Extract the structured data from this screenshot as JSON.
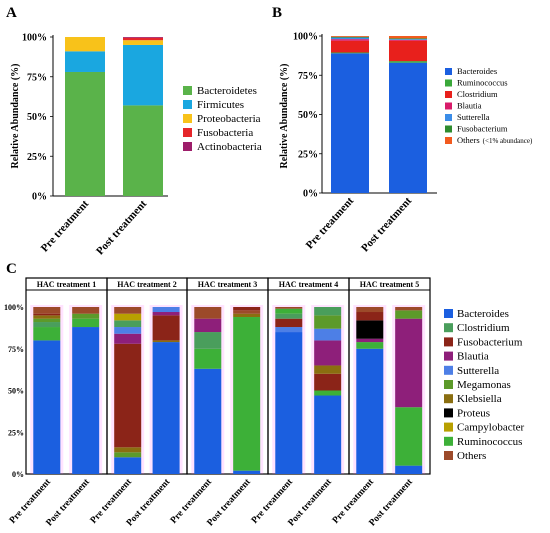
{
  "panel_labels": {
    "a": "A",
    "b": "B",
    "c": "C"
  },
  "colors": {
    "Bacteroidetes": "#5ab34a",
    "Firmicutes": "#1aa7e0",
    "Proteobacteria": "#f8c21a",
    "Fusobacteria": "#e5262a",
    "Actinobacteria": "#9d1d6a",
    "Bacteroides": "#1b5fe0",
    "Ruminococcus": "#3aa83a",
    "Clostridium": "#e8201c",
    "Blautia": "#d81b6a",
    "Sutterella": "#3b8de8",
    "Fusobacterium": "#2e8b2e",
    "Others": "#f25a1e",
    "C_Clostridium": "#4a9e5c",
    "C_Fusobacterium": "#8b2418",
    "C_Blautia": "#8e1f7a",
    "C_Sutterella": "#4d7fe6",
    "C_Megamonas": "#5c9a2a",
    "C_Klebsiella": "#8a6e10",
    "C_Proteus": "#000000",
    "C_Campylobacter": "#b8a000",
    "C_Ruminococcus": "#3db038",
    "C_Others": "#9c4a2a",
    "glow": "#ff66ff"
  },
  "chart_data": [
    {
      "panel": "A",
      "type": "bar",
      "stacked": true,
      "ylabel": "Relative Abundance (%)",
      "yticks": [
        "0%",
        "25%",
        "50%",
        "75%",
        "100%"
      ],
      "ylim": [
        0,
        100
      ],
      "categories": [
        "Pre treatment",
        "Post treatment"
      ],
      "series": [
        {
          "name": "Bacteroidetes",
          "values": [
            78,
            57
          ]
        },
        {
          "name": "Firmicutes",
          "values": [
            13,
            38
          ]
        },
        {
          "name": "Proteobacteria",
          "values": [
            9,
            3
          ]
        },
        {
          "name": "Fusobacteria",
          "values": [
            0,
            1.5
          ]
        },
        {
          "name": "Actinobacteria",
          "values": [
            0,
            0.5
          ]
        }
      ],
      "legend": "right"
    },
    {
      "panel": "B",
      "type": "bar",
      "stacked": true,
      "ylabel": "Relative Abundance (%)",
      "yticks": [
        "0%",
        "25%",
        "50%",
        "75%",
        "100%"
      ],
      "ylim": [
        0,
        100
      ],
      "categories": [
        "Pre treatment",
        "Post treatment"
      ],
      "series": [
        {
          "name": "Bacteroides",
          "values": [
            89,
            83
          ]
        },
        {
          "name": "Ruminococcus",
          "values": [
            0.5,
            1
          ]
        },
        {
          "name": "Clostridium",
          "values": [
            7.5,
            13
          ]
        },
        {
          "name": "Blautia",
          "values": [
            1,
            0.5
          ]
        },
        {
          "name": "Sutterella",
          "values": [
            1,
            0.5
          ]
        },
        {
          "name": "Fusobacterium",
          "values": [
            0.5,
            0.5
          ]
        },
        {
          "name": "Others",
          "values": [
            0.5,
            1.5
          ]
        }
      ],
      "legend_entries": [
        "Bacteroides",
        "Ruminococcus",
        "Clostridium",
        "Blautia",
        "Sutterella",
        "Fusobacterium",
        "Others"
      ],
      "legend_note": "(<1% abundance)",
      "legend": "right"
    },
    {
      "panel": "C",
      "type": "bar",
      "stacked": true,
      "ylim": [
        0,
        100
      ],
      "yticks": [
        "0%",
        "25%",
        "50%",
        "75%",
        "100%"
      ],
      "groups": [
        "HAC treatment 1",
        "HAC treatment 2",
        "HAC treatment 3",
        "HAC treatment 4",
        "HAC treatment 5"
      ],
      "categories": [
        "Pre treatment",
        "Post treatment"
      ],
      "legend_entries": [
        "Bacteroides",
        "Clostridium",
        "Fusobacterium",
        "Blautia",
        "Sutterella",
        "Megamonas",
        "Klebsiella",
        "Proteus",
        "Campylobacter",
        "Ruminococcus",
        "Others"
      ],
      "bars": [
        [
          [
            "Bacteroides",
            80
          ],
          [
            "Ruminococcus",
            8
          ],
          [
            "Clostridium",
            3
          ],
          [
            "Megamonas",
            2
          ],
          [
            "Klebsiella",
            2
          ],
          [
            "Fusobacterium",
            1
          ],
          [
            "Others",
            4
          ]
        ],
        [
          [
            "Bacteroides",
            88
          ],
          [
            "Ruminococcus",
            5
          ],
          [
            "Megamonas",
            3
          ],
          [
            "Others",
            4
          ]
        ],
        [
          [
            "Bacteroides",
            10
          ],
          [
            "Megamonas",
            3
          ],
          [
            "Klebsiella",
            3
          ],
          [
            "Fusobacterium",
            62
          ],
          [
            "Blautia",
            6
          ],
          [
            "Sutterella",
            4
          ],
          [
            "Clostridium",
            4
          ],
          [
            "Campylobacter",
            4
          ],
          [
            "Others",
            4
          ]
        ],
        [
          [
            "Bacteroides",
            79
          ],
          [
            "Klebsiella",
            1
          ],
          [
            "Fusobacterium",
            15
          ],
          [
            "Blautia",
            2
          ],
          [
            "Sutterella",
            3
          ]
        ],
        [
          [
            "Bacteroides",
            63
          ],
          [
            "Ruminococcus",
            12
          ],
          [
            "Clostridium",
            10
          ],
          [
            "Blautia",
            8
          ],
          [
            "Others",
            7
          ]
        ],
        [
          [
            "Bacteroides",
            2
          ],
          [
            "Ruminococcus",
            92
          ],
          [
            "Klebsiella",
            2
          ],
          [
            "Others",
            2
          ],
          [
            "Fusobacterium",
            2
          ]
        ],
        [
          [
            "Bacteroides",
            85
          ],
          [
            "Sutterella",
            3
          ],
          [
            "Fusobacterium",
            5
          ],
          [
            "Clostridium",
            3
          ],
          [
            "Ruminococcus",
            3
          ],
          [
            "Others",
            1
          ]
        ],
        [
          [
            "Bacteroides",
            47
          ],
          [
            "Ruminococcus",
            3
          ],
          [
            "Fusobacterium",
            10
          ],
          [
            "Klebsiella",
            5
          ],
          [
            "Blautia",
            15
          ],
          [
            "Sutterella",
            7
          ],
          [
            "Megamonas",
            8
          ],
          [
            "Clostridium",
            5
          ]
        ],
        [
          [
            "Bacteroides",
            75
          ],
          [
            "Ruminococcus",
            4
          ],
          [
            "Blautia",
            2
          ],
          [
            "Proteus",
            11
          ],
          [
            "Fusobacterium",
            5
          ],
          [
            "Others",
            3
          ]
        ],
        [
          [
            "Bacteroides",
            5
          ],
          [
            "Ruminococcus",
            35
          ],
          [
            "Blautia",
            53
          ],
          [
            "Megamonas",
            5
          ],
          [
            "Others",
            2
          ]
        ]
      ],
      "legend": "right"
    }
  ]
}
